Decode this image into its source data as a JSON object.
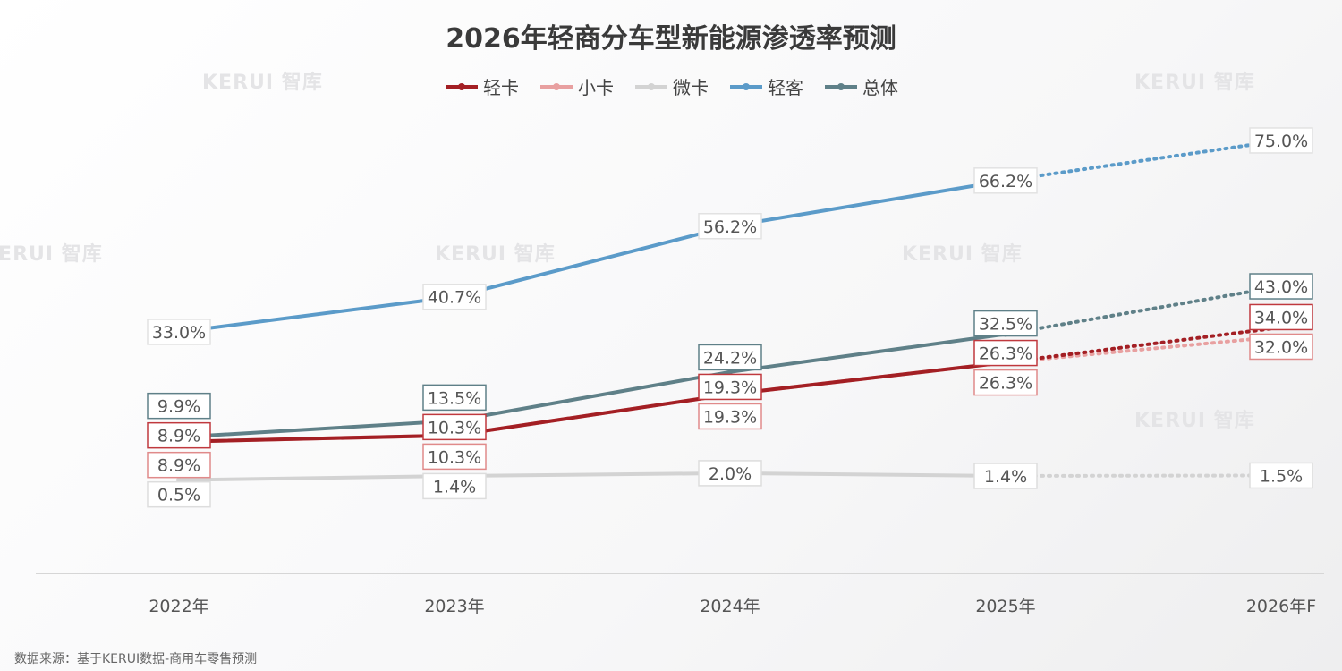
{
  "watermark": "KERUI 智库",
  "source": "数据来源：基于KERUI数据-商用车零售预测",
  "chart_data": {
    "type": "line",
    "title": "2026年轻商分车型新能源渗透率预测",
    "categories": [
      "2022年",
      "2023年",
      "2024年",
      "2025年",
      "2026年F"
    ],
    "forecast_from_index": 3,
    "ylim": [
      -20,
      80
    ],
    "grid": false,
    "legend_position": "top",
    "series": [
      {
        "name": "轻卡",
        "color": "#a31f24",
        "values": [
          8.9,
          10.3,
          19.3,
          26.3,
          34.0
        ],
        "labels": [
          "8.9%",
          "10.3%",
          "19.3%",
          "26.3%",
          "34.0%"
        ]
      },
      {
        "name": "小卡",
        "color": "#e8a0a0",
        "values": [
          8.9,
          10.3,
          19.3,
          26.3,
          32.0
        ],
        "labels": [
          "8.9%",
          "10.3%",
          "19.3%",
          "26.3%",
          "32.0%"
        ]
      },
      {
        "name": "微卡",
        "color": "#d3d3d3",
        "values": [
          0.5,
          1.4,
          2.0,
          1.4,
          1.5
        ],
        "labels": [
          "0.5%",
          "1.4%",
          "2.0%",
          "1.4%",
          "1.5%"
        ]
      },
      {
        "name": "轻客",
        "color": "#5b9bc9",
        "values": [
          33.0,
          40.7,
          56.2,
          66.2,
          75.0
        ],
        "labels": [
          "33.0%",
          "40.7%",
          "56.2%",
          "66.2%",
          "75.0%"
        ]
      },
      {
        "name": "总体",
        "color": "#5f8088",
        "values": [
          9.9,
          13.5,
          24.2,
          32.5,
          43.0
        ],
        "labels": [
          "9.9%",
          "13.5%",
          "24.2%",
          "32.5%",
          "43.0%"
        ]
      }
    ]
  }
}
